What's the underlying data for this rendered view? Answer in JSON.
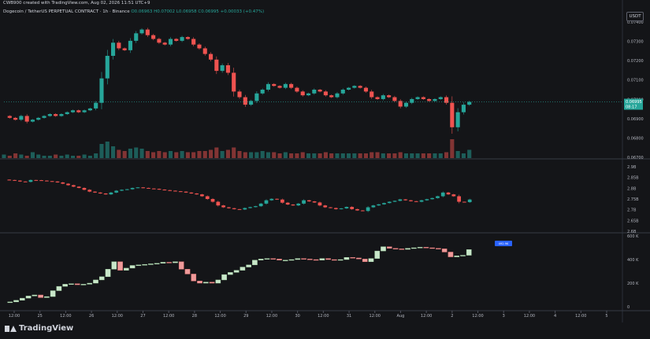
{
  "header": {
    "attribution": "CWB900 created with TradingView.com, Aug 02, 2026 11:51 UTC+9",
    "symbol_line": "Dogecoin / TetherUS PERPETUAL CONTRACT · 1h · Binance",
    "ohlc": "O0.06963 H0.07002 L0.06958 C0.06995 +0.00033 (+0.47%)"
  },
  "currency_label": "USDT",
  "brand": "TradingView",
  "last_price_tag": {
    "price": "0.06995",
    "countdown": "08:17"
  },
  "chart_data": {
    "type": "candlestick",
    "x_ticks": [
      "12:00",
      "25",
      "12:00",
      "26",
      "12:00",
      "27",
      "12:00",
      "28",
      "12:00",
      "29",
      "12:00",
      "30",
      "12:00",
      "31",
      "12:00",
      "Aug",
      "12:00",
      "2",
      "12:00",
      "3",
      "12:00",
      "4",
      "12:00",
      "5"
    ],
    "panels": [
      {
        "name": "price",
        "y_ticks": [
          "0.07400",
          "0.07300",
          "0.07200",
          "0.07100",
          "0.07000",
          "0.06900",
          "0.06800",
          "0.06700"
        ],
        "ylim": [
          0.067,
          0.0742
        ],
        "current_value": 0.06995
      },
      {
        "name": "indicator",
        "y_ticks": [
          "2.9B",
          "2.85B",
          "2.8B",
          "2.75B",
          "2.7B",
          "2.65B",
          "2.6B"
        ],
        "ylim": [
          2.58,
          2.93
        ]
      },
      {
        "name": "cumulative",
        "y_ticks": [
          "600 K",
          "400 K",
          "200 K",
          "0"
        ],
        "ylim": [
          -40,
          620
        ],
        "last_label": "492.9K"
      }
    ],
    "price_close": [
      0.0692,
      0.0691,
      0.069,
      0.0692,
      0.0689,
      0.069,
      0.0691,
      0.0692,
      0.0693,
      0.0692,
      0.0693,
      0.0694,
      0.0695,
      0.0694,
      0.0695,
      0.0696,
      0.0699,
      0.0712,
      0.0724,
      0.0731,
      0.0728,
      0.0727,
      0.0732,
      0.0736,
      0.0738,
      0.0735,
      0.0733,
      0.0731,
      0.073,
      0.0733,
      0.0732,
      0.0734,
      0.0733,
      0.073,
      0.0728,
      0.0725,
      0.0722,
      0.0716,
      0.0719,
      0.0715,
      0.0705,
      0.0702,
      0.0698,
      0.07,
      0.0704,
      0.0706,
      0.0709,
      0.0708,
      0.0707,
      0.0709,
      0.0707,
      0.0705,
      0.0703,
      0.0704,
      0.0706,
      0.0705,
      0.0703,
      0.0702,
      0.0704,
      0.0706,
      0.0707,
      0.0708,
      0.0707,
      0.0705,
      0.0702,
      0.0701,
      0.0703,
      0.0702,
      0.07,
      0.0697,
      0.0699,
      0.0701,
      0.0702,
      0.0701,
      0.07,
      0.0701,
      0.0702,
      0.0699,
      0.0686,
      0.0694,
      0.0698,
      0.06995
    ],
    "volume": [
      3,
      2,
      4,
      3,
      2,
      5,
      3,
      2,
      2,
      3,
      2,
      3,
      2,
      2,
      3,
      2,
      4,
      12,
      14,
      10,
      7,
      6,
      8,
      9,
      8,
      6,
      5,
      6,
      5,
      6,
      5,
      6,
      5,
      5,
      6,
      6,
      7,
      9,
      6,
      7,
      9,
      6,
      5,
      5,
      5,
      6,
      5,
      5,
      4,
      5,
      4,
      4,
      5,
      4,
      4,
      4,
      5,
      4,
      4,
      4,
      4,
      4,
      4,
      4,
      5,
      5,
      4,
      4,
      4,
      5,
      4,
      4,
      4,
      4,
      4,
      4,
      4,
      5,
      16,
      6,
      4,
      7
    ],
    "indicator_close": [
      2.86,
      2.858,
      2.855,
      2.85,
      2.848,
      2.858,
      2.857,
      2.855,
      2.852,
      2.85,
      2.845,
      2.838,
      2.83,
      2.822,
      2.815,
      2.805,
      2.795,
      2.79,
      2.785,
      2.78,
      2.79,
      2.8,
      2.805,
      2.808,
      2.815,
      2.818,
      2.815,
      2.812,
      2.81,
      2.806,
      2.803,
      2.8,
      2.797,
      2.795,
      2.79,
      2.785,
      2.78,
      2.77,
      2.755,
      2.74,
      2.72,
      2.71,
      2.705,
      2.7,
      2.698,
      2.706,
      2.711,
      2.716,
      2.73,
      2.748,
      2.756,
      2.752,
      2.735,
      2.725,
      2.72,
      2.73,
      2.748,
      2.742,
      2.736,
      2.72,
      2.71,
      2.706,
      2.7,
      2.704,
      2.712,
      2.7,
      2.693,
      2.69,
      2.71,
      2.72,
      2.726,
      2.733,
      2.74,
      2.745,
      2.753,
      2.748,
      2.743,
      2.74,
      2.748,
      2.754,
      2.76,
      2.77,
      2.79,
      2.78,
      2.77,
      2.74,
      2.738,
      2.752
    ],
    "cumulative_close": [
      0,
      5,
      20,
      40,
      60,
      70,
      45,
      55,
      110,
      150,
      170,
      175,
      165,
      170,
      180,
      210,
      240,
      310,
      380,
      300,
      320,
      345,
      350,
      355,
      360,
      365,
      375,
      370,
      380,
      310,
      265,
      200,
      180,
      190,
      180,
      210,
      260,
      280,
      300,
      330,
      350,
      395,
      405,
      410,
      405,
      395,
      395,
      400,
      410,
      405,
      400,
      395,
      410,
      400,
      395,
      400,
      420,
      415,
      405,
      380,
      410,
      480,
      520,
      505,
      500,
      495,
      505,
      510,
      515,
      510,
      505,
      500,
      470,
      425,
      435,
      440,
      492.9
    ]
  }
}
